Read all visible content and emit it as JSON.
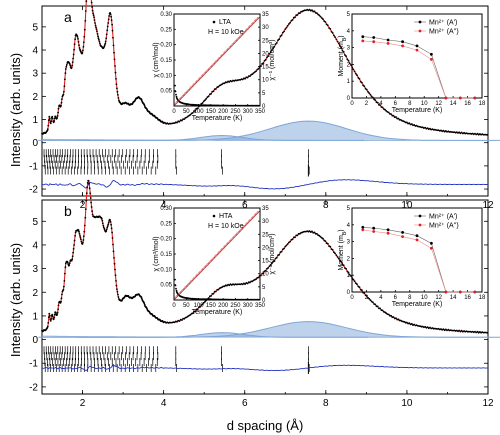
{
  "figure": {
    "xlabel": "d spacing (Å)",
    "ylabel": "Intensity (arb. units)",
    "x_ticks": [
      2,
      4,
      6,
      8,
      10,
      12
    ],
    "y_ticks": [
      -2,
      -1,
      0,
      1,
      2,
      3,
      4,
      5
    ],
    "xlim": [
      1,
      12
    ],
    "ylim": [
      -2.3,
      5.9
    ],
    "colors": {
      "observed": "#000000",
      "calculated": "#e02020",
      "background": "#7fa6d8",
      "difference": "#2030c0",
      "ticks": "#000000"
    }
  },
  "panels": [
    {
      "label": "a",
      "peaks": [
        [
          1.18,
          0.6,
          0.01
        ],
        [
          1.25,
          0.55,
          0.012
        ],
        [
          1.33,
          0.5,
          0.012
        ],
        [
          1.42,
          0.8,
          0.013
        ],
        [
          1.5,
          0.9,
          0.014
        ],
        [
          1.58,
          1.5,
          0.014
        ],
        [
          1.63,
          1.2,
          0.014
        ],
        [
          1.68,
          1.5,
          0.015
        ],
        [
          1.75,
          1.05,
          0.015
        ],
        [
          1.82,
          2.2,
          0.016
        ],
        [
          1.88,
          1.8,
          0.016
        ],
        [
          1.95,
          1.3,
          0.016
        ],
        [
          2.02,
          0.8,
          0.017
        ],
        [
          2.13,
          4.9,
          0.02
        ],
        [
          2.2,
          1.3,
          0.018
        ],
        [
          2.28,
          2.2,
          0.018
        ],
        [
          2.37,
          1.7,
          0.018
        ],
        [
          2.47,
          1.4,
          0.019
        ],
        [
          2.55,
          0.7,
          0.02
        ],
        [
          2.69,
          4.5,
          0.022
        ],
        [
          3.05,
          0.7,
          0.025
        ],
        [
          3.38,
          1.2,
          0.028
        ],
        [
          3.72,
          0.4,
          0.03
        ],
        [
          5.43,
          1.4,
          0.06
        ],
        [
          7.57,
          5.55,
          0.08
        ]
      ],
      "baseline": 0.1,
      "phase_ticks": {
        "rows": [
          -0.45,
          -0.7,
          -0.95,
          -1.2
        ],
        "rows_y": "intensity units"
      },
      "difference_offset": -1.8,
      "inset1": {
        "legend": "LTA",
        "field": "H = 10 kOe",
        "xlabel": "Temperature (K)",
        "ylabel_left": "χ (cm³/mol)",
        "ylabel_right": "χ⁻¹ (mol/cm³)",
        "xlim": [
          0,
          350
        ],
        "ylim_left": [
          0,
          0.3
        ],
        "ylim_right": [
          0,
          35
        ],
        "x_ticks": [
          0,
          50,
          100,
          150,
          200,
          250,
          300,
          350
        ],
        "y_ticks_left": [
          0.05,
          0.1,
          0.15,
          0.2,
          0.25,
          0.3
        ],
        "y_ticks_left_labels": [
          "0.05",
          "0.10",
          "0.15",
          "0.20",
          "0.25",
          "0.30"
        ],
        "y_ticks_right": [
          0,
          5,
          10,
          15,
          20,
          25,
          30,
          35
        ],
        "chi_C": 10.5,
        "chi_theta": 1,
        "invchi_fit": {
          "slope": 0.097,
          "intercept": 0
        }
      },
      "inset2": {
        "legend": [
          "Mn²⁺ (A')",
          "Mn²⁺ (A'')"
        ],
        "xlabel": "Temperature (K)",
        "ylabel": "Moment (m",
        "ylabel_sub": "B",
        "ylabel_tail": ")",
        "xlim": [
          0,
          18
        ],
        "ylim": [
          0,
          5
        ],
        "x_ticks": [
          0,
          2,
          4,
          6,
          8,
          10,
          12,
          14,
          16,
          18
        ],
        "y_ticks": [
          0,
          1,
          2,
          3,
          4,
          5
        ],
        "series": [
          {
            "name": "Mn²⁺ (A')",
            "x": [
              1.5,
              3,
              5,
              7,
              9,
              11,
              13,
              15,
              17
            ],
            "y": [
              3.65,
              3.6,
              3.45,
              3.35,
              3.1,
              2.6,
              0,
              0,
              0
            ]
          },
          {
            "name": "Mn²⁺ (A'')",
            "x": [
              1.5,
              3,
              5,
              7,
              9,
              11,
              13,
              15,
              17
            ],
            "y": [
              3.4,
              3.35,
              3.25,
              3.1,
              2.85,
              2.3,
              0,
              0,
              0
            ]
          }
        ]
      }
    },
    {
      "label": "b",
      "peaks": [
        [
          1.18,
          0.6,
          0.01
        ],
        [
          1.25,
          0.5,
          0.012
        ],
        [
          1.33,
          0.55,
          0.012
        ],
        [
          1.42,
          0.8,
          0.013
        ],
        [
          1.5,
          0.95,
          0.014
        ],
        [
          1.58,
          1.6,
          0.014
        ],
        [
          1.63,
          1.3,
          0.014
        ],
        [
          1.7,
          1.6,
          0.015
        ],
        [
          1.77,
          1.1,
          0.015
        ],
        [
          1.83,
          2.2,
          0.016
        ],
        [
          1.9,
          1.9,
          0.016
        ],
        [
          1.96,
          1.3,
          0.016
        ],
        [
          2.03,
          0.8,
          0.017
        ],
        [
          2.13,
          4.6,
          0.02
        ],
        [
          2.21,
          1.4,
          0.018
        ],
        [
          2.3,
          2.0,
          0.018
        ],
        [
          2.38,
          1.6,
          0.018
        ],
        [
          2.47,
          2.4,
          0.019
        ],
        [
          2.56,
          0.8,
          0.02
        ],
        [
          2.69,
          3.8,
          0.022
        ],
        [
          3.07,
          0.9,
          0.025
        ],
        [
          3.38,
          1.2,
          0.028
        ],
        [
          3.72,
          0.3,
          0.03
        ],
        [
          5.45,
          1.3,
          0.06
        ],
        [
          7.57,
          4.4,
          0.08
        ]
      ],
      "baseline": 0.1,
      "phase_ticks": {
        "rows": [
          -0.45,
          -0.7,
          -0.95,
          -1.2
        ],
        "rows_y": "intensity units"
      },
      "difference_offset": -1.2,
      "inset1": {
        "legend": "HTA",
        "field": "H = 10 kOe",
        "xlabel": "Temperature (K)",
        "ylabel_left": "χ (cm³/mol)",
        "ylabel_right": "χ⁻¹ (mol/cm³)",
        "xlim": [
          0,
          350
        ],
        "ylim_left": [
          0,
          0.3
        ],
        "ylim_right": [
          0,
          35
        ],
        "x_ticks": [
          0,
          50,
          100,
          150,
          200,
          250,
          300,
          350
        ],
        "y_ticks_left": [
          0.05,
          0.1,
          0.15,
          0.2,
          0.25,
          0.3
        ],
        "y_ticks_left_labels": [
          "0.05",
          "0.10",
          "0.15",
          "0.20",
          "0.25",
          "0.30"
        ],
        "y_ticks_right": [
          0,
          5,
          10,
          15,
          20,
          25,
          30,
          35
        ],
        "chi_C": 10.5,
        "chi_theta": 1,
        "invchi_fit": {
          "slope": 0.097,
          "intercept": 0
        }
      },
      "inset2": {
        "legend": [
          "Mn²⁺ (A')",
          "Mn²⁺ (A'')"
        ],
        "xlabel": "Temperature (K)",
        "ylabel": "Moment (m",
        "ylabel_sub": "B",
        "ylabel_tail": ")",
        "xlim": [
          0,
          18
        ],
        "ylim": [
          0,
          5
        ],
        "x_ticks": [
          0,
          2,
          4,
          6,
          8,
          10,
          12,
          14,
          16,
          18
        ],
        "y_ticks": [
          0,
          1,
          2,
          3,
          4,
          5
        ],
        "series": [
          {
            "name": "Mn²⁺ (A')",
            "x": [
              1.5,
              3,
              5,
              7,
              9,
              11,
              13,
              15,
              17
            ],
            "y": [
              3.85,
              3.8,
              3.7,
              3.55,
              3.35,
              2.9,
              0,
              0,
              0
            ]
          },
          {
            "name": "Mn²⁺ (A'')",
            "x": [
              1.5,
              3,
              5,
              7,
              9,
              11,
              13,
              15,
              17
            ],
            "y": [
              3.7,
              3.6,
              3.5,
              3.3,
              3.1,
              2.6,
              0,
              0,
              0
            ]
          }
        ]
      }
    }
  ],
  "chart_data": [
    {
      "type": "line",
      "panel": "a",
      "xlabel": "d spacing (Å)",
      "ylabel": "Intensity (arb. units)",
      "xlim": [
        1,
        12
      ],
      "ylim": [
        -2.3,
        5.9
      ],
      "series": [
        {
          "values_peak_d": [
            2.13,
            2.69,
            3.38,
            5.43,
            7.57
          ],
          "values_peak_intensity": [
            4.9,
            4.5,
            1.2,
            1.4,
            5.55
          ]
        }
      ]
    },
    {
      "type": "line",
      "panel": "b",
      "xlabel": "d spacing (Å)",
      "ylabel": "Intensity (arb. units)",
      "xlim": [
        1,
        12
      ],
      "ylim": [
        -2.3,
        5.9
      ],
      "series": [
        {
          "values_peak_d": [
            2.13,
            2.69,
            3.38,
            5.45,
            7.57
          ],
          "values_peak_intensity": [
            4.6,
            3.8,
            1.2,
            1.3,
            4.4
          ]
        }
      ]
    }
  ]
}
